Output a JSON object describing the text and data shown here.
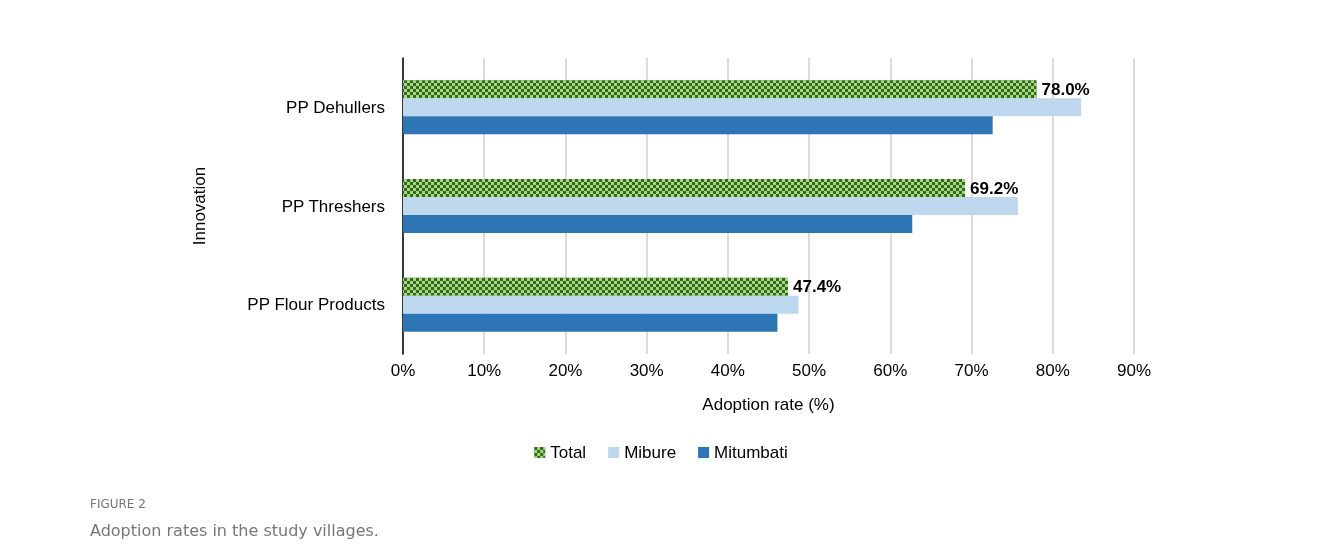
{
  "chart_data": {
    "type": "bar",
    "orientation": "horizontal",
    "xlabel": "Adoption rate (%)",
    "ylabel": "Innovation",
    "categories": [
      "PP Dehullers",
      "PP Threshers",
      "PP Flour Products"
    ],
    "series": [
      {
        "name": "Total",
        "color": "#2e6b1e",
        "values": [
          78.0,
          69.2,
          47.4
        ],
        "value_labels": [
          "78.0%",
          "69.2%",
          "47.4%"
        ]
      },
      {
        "name": "Mibure",
        "color": "#bdd7ee",
        "values": [
          83.5,
          75.7,
          48.7
        ]
      },
      {
        "name": "Mitumbati",
        "color": "#2e75b6",
        "values": [
          72.6,
          62.7,
          46.1
        ]
      }
    ],
    "xlim": [
      0,
      90
    ],
    "xticks": [
      {
        "value": 0,
        "label": "0%"
      },
      {
        "value": 10,
        "label": "10%"
      },
      {
        "value": 20,
        "label": "20%"
      },
      {
        "value": 30,
        "label": "30%"
      },
      {
        "value": 40,
        "label": "40%"
      },
      {
        "value": 50,
        "label": "50%"
      },
      {
        "value": 60,
        "label": "60%"
      },
      {
        "value": 70,
        "label": "70%"
      },
      {
        "value": 80,
        "label": "80%"
      },
      {
        "value": 90,
        "label": "90%"
      }
    ],
    "grid": "x",
    "legend": "bottom",
    "annotations": [
      "FIGURE 2",
      "Adoption rates in the study villages."
    ]
  }
}
